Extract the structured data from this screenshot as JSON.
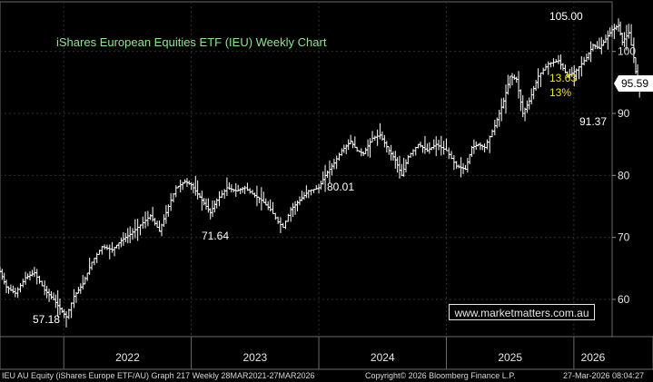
{
  "chart_data": {
    "type": "ohlc",
    "title": "iShares European Equities ETF (IEU) Weekly Chart",
    "y_axis": {
      "ylim": [
        54,
        108
      ],
      "ticks": [
        60,
        70,
        80,
        90,
        100
      ],
      "side": "right"
    },
    "x_axis": {
      "tick_labels": [
        "2022",
        "2023",
        "2024",
        "2025",
        "2026"
      ],
      "range_years": [
        2021.5,
        2026.3
      ]
    },
    "grid": true,
    "series": [
      {
        "points": [
          [
            2021.5,
            64.5
          ],
          [
            2021.55,
            62.0
          ],
          [
            2021.62,
            61.0
          ],
          [
            2021.7,
            63.5
          ],
          [
            2021.77,
            64.3
          ],
          [
            2021.85,
            61.5
          ],
          [
            2021.92,
            60.0
          ],
          [
            2021.97,
            58.5
          ],
          [
            2022.02,
            57.18
          ],
          [
            2022.08,
            60.5
          ],
          [
            2022.15,
            62.5
          ],
          [
            2022.22,
            66.0
          ],
          [
            2022.3,
            68.5
          ],
          [
            2022.38,
            68.0
          ],
          [
            2022.45,
            69.5
          ],
          [
            2022.52,
            70.5
          ],
          [
            2022.6,
            72.0
          ],
          [
            2022.68,
            73.5
          ],
          [
            2022.75,
            71.0
          ],
          [
            2022.82,
            75.0
          ],
          [
            2022.88,
            78.0
          ],
          [
            2022.95,
            79.0
          ],
          [
            2023.0,
            78.5
          ],
          [
            2023.05,
            77.0
          ],
          [
            2023.1,
            75.5
          ],
          [
            2023.15,
            74.0
          ],
          [
            2023.2,
            76.0
          ],
          [
            2023.28,
            78.0
          ],
          [
            2023.35,
            77.5
          ],
          [
            2023.42,
            78.0
          ],
          [
            2023.48,
            77.0
          ],
          [
            2023.55,
            76.0
          ],
          [
            2023.62,
            74.5
          ],
          [
            2023.68,
            72.5
          ],
          [
            2023.72,
            71.64
          ],
          [
            2023.78,
            74.5
          ],
          [
            2023.85,
            76.0
          ],
          [
            2023.92,
            77.5
          ],
          [
            2024.0,
            78.0
          ],
          [
            2024.05,
            80.0
          ],
          [
            2024.12,
            82.0
          ],
          [
            2024.18,
            84.0
          ],
          [
            2024.25,
            85.5
          ],
          [
            2024.3,
            84.0
          ],
          [
            2024.35,
            83.5
          ],
          [
            2024.42,
            86.0
          ],
          [
            2024.48,
            86.5
          ],
          [
            2024.55,
            84.0
          ],
          [
            2024.6,
            82.5
          ],
          [
            2024.65,
            80.01
          ],
          [
            2024.7,
            83.0
          ],
          [
            2024.78,
            85.0
          ],
          [
            2024.85,
            84.0
          ],
          [
            2024.92,
            85.0
          ],
          [
            2025.0,
            84.0
          ],
          [
            2025.08,
            81.5
          ],
          [
            2025.15,
            81.0
          ],
          [
            2025.2,
            84.5
          ],
          [
            2025.25,
            85.0
          ],
          [
            2025.3,
            84.5
          ],
          [
            2025.38,
            88.0
          ],
          [
            2025.45,
            92.0
          ],
          [
            2025.5,
            96.0
          ],
          [
            2025.55,
            95.5
          ],
          [
            2025.6,
            90.0
          ],
          [
            2025.65,
            92.0
          ],
          [
            2025.72,
            96.0
          ],
          [
            2025.8,
            98.0
          ],
          [
            2025.88,
            98.5
          ],
          [
            2025.95,
            96.0
          ],
          [
            2026.02,
            97.0
          ],
          [
            2026.1,
            99.0
          ],
          [
            2026.15,
            101.0
          ],
          [
            2026.2,
            100.5
          ],
          [
            2026.25,
            102.0
          ],
          [
            2026.3,
            103.5
          ],
          [
            2026.35,
            104.2
          ],
          [
            2026.38,
            101.5
          ],
          [
            2026.43,
            103.0
          ],
          [
            2026.47,
            99.0
          ],
          [
            2026.5,
            94.5
          ],
          [
            2026.53,
            95.59
          ]
        ]
      }
    ],
    "annotations": {
      "high": "105.00",
      "low_2022": "57.18",
      "low_2023": "71.64",
      "low_2024": "80.01",
      "recent_low": "91.37",
      "drop_value": "13.63",
      "drop_pct": "13%",
      "last_price": "95.59"
    }
  },
  "watermark": "www.marketmatters.com.au",
  "footer": {
    "left": "IEU AU Equity (iShares Europe ETF/AU) Graph 217 Weekly 28MAR2021-27MAR2026",
    "center": "Copyright© 2026 Bloomberg Finance L.P.",
    "right": "27-Mar-2026 08:04:27"
  },
  "colors": {
    "background": "#000000",
    "bars": "#ffffff",
    "title": "#8fe48f",
    "annotation_yellow": "#f2e600",
    "price_tag": "#ffffff"
  }
}
